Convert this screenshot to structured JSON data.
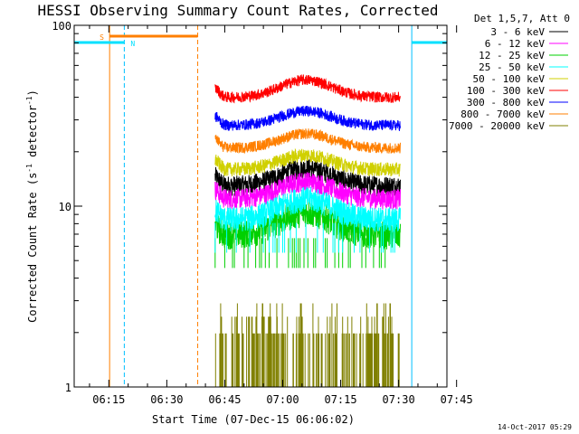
{
  "chart_data": {
    "type": "line",
    "title": "HESSI Observing Summary Count Rates, Corrected",
    "xlabel": "Start Time (07-Dec-15 06:06:02)",
    "ylabel": "Corrected Count Rate (s",
    "ylabel_sup1": "-1",
    "ylabel_mid": " detector",
    "ylabel_sup2": "-1",
    "ylabel_end": ")",
    "yscale": "log",
    "ylim": [
      1,
      100
    ],
    "xlim_minutes": [
      6.03,
      102.5
    ],
    "x_ticks": [
      {
        "label": "06:15",
        "m": 15
      },
      {
        "label": "06:30",
        "m": 30
      },
      {
        "label": "06:45",
        "m": 45
      },
      {
        "label": "07:00",
        "m": 60
      },
      {
        "label": "07:15",
        "m": 75
      },
      {
        "label": "07:30",
        "m": 90
      },
      {
        "label": "07:45",
        "m": 105
      }
    ],
    "y_ticks": [
      {
        "label": "1",
        "v": 1
      },
      {
        "label": "10",
        "v": 10
      },
      {
        "label": "100",
        "v": 100
      }
    ],
    "legend": {
      "header": "Det 1,5,7, Att 0",
      "placement": "right"
    },
    "series": [
      {
        "name": "3 - 6 keV",
        "color": "#000000",
        "base": 13,
        "amp": 0.25,
        "noise": 0.13
      },
      {
        "name": "6 - 12 keV",
        "color": "#ff00ff",
        "base": 11,
        "amp": 0.25,
        "noise": 0.13
      },
      {
        "name": "12 - 25 keV",
        "color": "#00d000",
        "base": 7,
        "amp": 0.33,
        "noise": 0.18
      },
      {
        "name": "25 - 50 keV",
        "color": "#00ffff",
        "base": 8.5,
        "amp": 0.3,
        "noise": 0.16
      },
      {
        "name": "50 - 100 keV",
        "color": "#d0d000",
        "base": 16,
        "amp": 0.2,
        "noise": 0.09
      },
      {
        "name": "100 - 300 keV",
        "color": "#ff0000",
        "base": 40,
        "amp": 0.25,
        "noise": 0.07
      },
      {
        "name": "300 - 800 keV",
        "color": "#0000ff",
        "base": 28,
        "amp": 0.2,
        "noise": 0.07
      },
      {
        "name": "800 - 7000 keV",
        "color": "#ff7f00",
        "base": 21,
        "amp": 0.2,
        "noise": 0.07
      },
      {
        "name": "7000 - 20000 keV",
        "color": "#808000",
        "base": 1.5,
        "amp": 0.0,
        "noise": 0.0
      }
    ],
    "data_start_min": 42.5,
    "data_end_min": 90.5,
    "peak_min": 66,
    "annotations": {
      "saa": {
        "label": "S",
        "start_min": 15.2,
        "end_min": 38.0,
        "color": "#ff7f00"
      },
      "night": {
        "label": "N",
        "color": "#00e0ff",
        "segments": [
          [
            6.03,
            19.0
          ],
          [
            93.4,
            102.5
          ]
        ]
      },
      "vlines": [
        {
          "m": 15.2,
          "color": "#ff7f00",
          "dash": false
        },
        {
          "m": 19.0,
          "color": "#00c0ff",
          "dash": true
        },
        {
          "m": 38.0,
          "color": "#ff7f00",
          "dash": true
        },
        {
          "m": 93.4,
          "color": "#00c0ff",
          "dash": false
        },
        {
          "m": 102.5,
          "color": "#00c0ff",
          "dash": true
        }
      ]
    },
    "footer_date": "14-Oct-2017 05:29"
  }
}
